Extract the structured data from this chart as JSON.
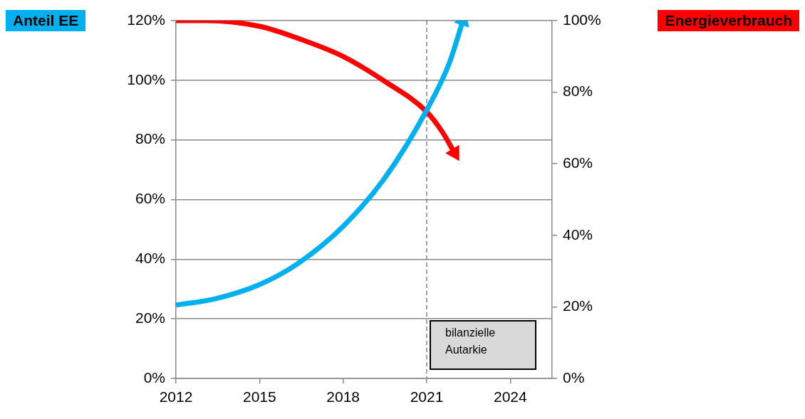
{
  "chart_data": {
    "type": "line",
    "ylabel": "Anteil EE",
    "y2label": "Energieverbrauch",
    "series": [
      {
        "color": "#00b0f0",
        "axis": "y",
        "x": [
          2012,
          2013.4,
          2015,
          2016.4,
          2018,
          2019.5,
          2021,
          2021.8,
          2022.3
        ],
        "values": [
          24.6,
          26.7,
          31.5,
          38.7,
          51,
          67.3,
          90,
          105.5,
          120
        ]
      },
      {
        "color": "#ff0000",
        "axis": "y2",
        "x": [
          2012,
          2013.1,
          2015,
          2016.4,
          2018,
          2019.5,
          2021,
          2021.55,
          2022
        ],
        "values": [
          100,
          100,
          98.4,
          95,
          90,
          83,
          74.5,
          69,
          63
        ]
      }
    ],
    "xlim": [
      2012,
      2025.5
    ],
    "xticks": [
      2012,
      2015,
      2018,
      2021,
      2024
    ],
    "ylim": [
      0,
      120
    ],
    "yticks": [
      {
        "value": 0,
        "label": "0%"
      },
      {
        "value": 20,
        "label": "20%"
      },
      {
        "value": 40,
        "label": "40%"
      },
      {
        "value": 60,
        "label": "60%"
      },
      {
        "value": 80,
        "label": "80%"
      },
      {
        "value": 100,
        "label": "100%"
      },
      {
        "value": 120,
        "label": "120%"
      }
    ],
    "y2lim": [
      0,
      100
    ],
    "y2ticks": [
      {
        "value": 0,
        "label": "0%"
      },
      {
        "value": 20,
        "label": "20%"
      },
      {
        "value": 40,
        "label": "40%"
      },
      {
        "value": 60,
        "label": "60%"
      },
      {
        "value": 80,
        "label": "80%"
      },
      {
        "value": 100,
        "label": "100%"
      }
    ],
    "ref_lines": [
      {
        "axis": "x",
        "value": 2021,
        "line_style": "dashed",
        "color": "#808080"
      }
    ],
    "annotations": [
      "bilanzielle Autarkie"
    ],
    "grid": "y",
    "legend": false,
    "marker": "none",
    "line_style": "solid"
  }
}
